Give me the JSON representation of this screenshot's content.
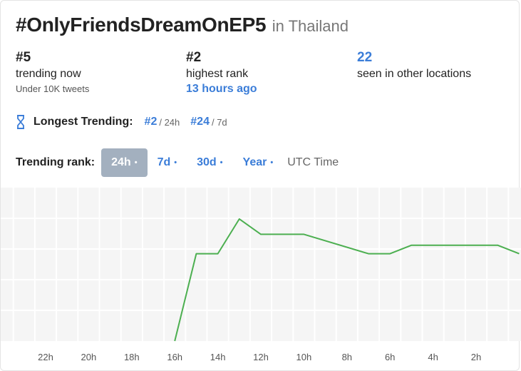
{
  "header": {
    "hashtag": "#OnlyFriendsDreamOnEP5",
    "location": "in Thailand"
  },
  "stats": {
    "current": {
      "value": "#5",
      "label": "trending now",
      "sub": "Under 10K tweets"
    },
    "highest": {
      "value": "#2",
      "label": "highest rank",
      "sub": "13 hours ago"
    },
    "locations": {
      "value": "22",
      "label": "seen in other locations"
    }
  },
  "longest": {
    "label": "Longest Trending:",
    "items": [
      {
        "rank": "#2",
        "period": "/ 24h"
      },
      {
        "rank": "#24",
        "period": "/ 7d"
      }
    ]
  },
  "range": {
    "label": "Trending rank:",
    "buttons": [
      {
        "label": "24h",
        "dot": "•",
        "active": true
      },
      {
        "label": "7d",
        "dot": "•",
        "active": false
      },
      {
        "label": "30d",
        "dot": "•",
        "active": false
      },
      {
        "label": "Year",
        "dot": "•",
        "active": false
      }
    ],
    "utc_label": "UTC Time"
  },
  "colors": {
    "accent": "#3b7dd8",
    "line": "#4caf50",
    "active_button": "#a3b0bf",
    "grid_bg": "#f5f5f5"
  },
  "icons": {
    "longest": "hourglass-icon"
  },
  "chart_data": {
    "type": "line",
    "x_label_unit": "hours ago",
    "xlim": [
      24,
      0
    ],
    "x_ticks": [
      {
        "h": 22,
        "label": "22h"
      },
      {
        "h": 20,
        "label": "20h"
      },
      {
        "h": 18,
        "label": "18h"
      },
      {
        "h": 16,
        "label": "16h"
      },
      {
        "h": 14,
        "label": "14h"
      },
      {
        "h": 12,
        "label": "12h"
      },
      {
        "h": 10,
        "label": "10h"
      },
      {
        "h": 8,
        "label": "8h"
      },
      {
        "h": 6,
        "label": "6h"
      },
      {
        "h": 4,
        "label": "4h"
      },
      {
        "h": 2,
        "label": "2h"
      }
    ],
    "ylim": [
      1,
      50
    ],
    "y_scale": "log",
    "grid": true,
    "series": [
      {
        "values": [
          {
            "h": 16,
            "rank": 50
          },
          {
            "h": 15,
            "rank": 5
          },
          {
            "h": 14,
            "rank": 5
          },
          {
            "h": 13,
            "rank": 2
          },
          {
            "h": 12,
            "rank": 3
          },
          {
            "h": 10,
            "rank": 3
          },
          {
            "h": 7,
            "rank": 5
          },
          {
            "h": 6,
            "rank": 5
          },
          {
            "h": 5,
            "rank": 4
          },
          {
            "h": 1,
            "rank": 4
          },
          {
            "h": 0,
            "rank": 5
          }
        ]
      }
    ]
  }
}
